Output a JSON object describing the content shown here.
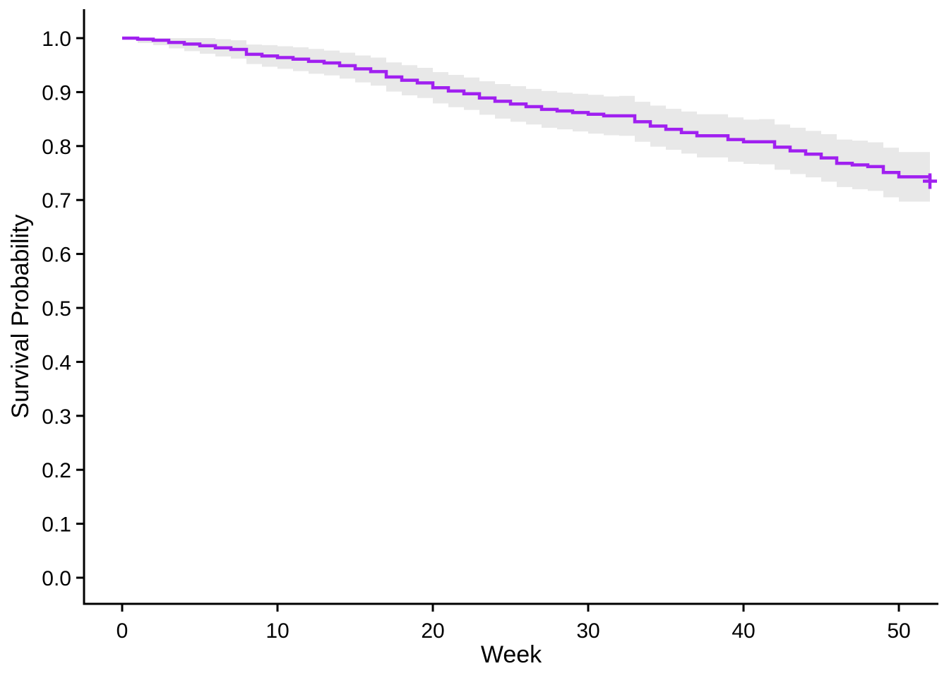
{
  "figure": {
    "background_color": "#FFFFFF",
    "plot_type_hint": "kaplan-meier-survival-curve"
  },
  "chart_data": {
    "type": "line",
    "subtype": "kaplan-meier-step",
    "title": "",
    "xlabel": "Week",
    "ylabel": "Survival Probability",
    "xlim": [
      0,
      52
    ],
    "ylim": [
      0.0,
      1.0
    ],
    "x_ticks": [
      0,
      10,
      20,
      30,
      40,
      50
    ],
    "y_ticks": [
      0.0,
      0.1,
      0.2,
      0.3,
      0.4,
      0.5,
      0.6,
      0.7,
      0.8,
      0.9,
      1.0
    ],
    "grid": false,
    "legend_position": "none",
    "colors": {
      "line": "#A020F0",
      "confidence_band": "#E8E8E8",
      "axis": "#000000",
      "text": "#000000"
    },
    "series": [
      {
        "name": "survival",
        "weeks": [
          0,
          1,
          2,
          3,
          4,
          5,
          6,
          7,
          8,
          9,
          10,
          11,
          12,
          13,
          14,
          15,
          16,
          17,
          18,
          19,
          20,
          21,
          22,
          23,
          24,
          25,
          26,
          27,
          28,
          29,
          30,
          31,
          32,
          33,
          34,
          35,
          36,
          37,
          38,
          39,
          40,
          41,
          42,
          43,
          44,
          45,
          46,
          47,
          48,
          49,
          50,
          51,
          52
        ],
        "survival": [
          1.0,
          0.998,
          0.996,
          0.992,
          0.989,
          0.986,
          0.982,
          0.979,
          0.97,
          0.967,
          0.964,
          0.961,
          0.957,
          0.954,
          0.949,
          0.943,
          0.938,
          0.928,
          0.922,
          0.917,
          0.908,
          0.902,
          0.897,
          0.889,
          0.883,
          0.878,
          0.873,
          0.868,
          0.865,
          0.862,
          0.859,
          0.856,
          0.856,
          0.845,
          0.837,
          0.831,
          0.825,
          0.819,
          0.819,
          0.812,
          0.808,
          0.808,
          0.798,
          0.791,
          0.785,
          0.778,
          0.768,
          0.765,
          0.762,
          0.751,
          0.743,
          0.743,
          0.735
        ],
        "ci_lower": [
          1.0,
          0.991,
          0.987,
          0.981,
          0.976,
          0.971,
          0.966,
          0.962,
          0.952,
          0.947,
          0.943,
          0.939,
          0.934,
          0.931,
          0.925,
          0.918,
          0.912,
          0.901,
          0.894,
          0.889,
          0.879,
          0.872,
          0.867,
          0.858,
          0.851,
          0.845,
          0.84,
          0.834,
          0.831,
          0.827,
          0.823,
          0.82,
          0.819,
          0.808,
          0.799,
          0.793,
          0.786,
          0.779,
          0.779,
          0.771,
          0.767,
          0.766,
          0.756,
          0.748,
          0.742,
          0.734,
          0.724,
          0.72,
          0.717,
          0.705,
          0.697,
          0.697,
          0.688
        ],
        "ci_upper": [
          1.0,
          1.0,
          1.0,
          1.0,
          1.0,
          1.0,
          0.998,
          0.996,
          0.988,
          0.987,
          0.985,
          0.983,
          0.98,
          0.977,
          0.973,
          0.968,
          0.964,
          0.955,
          0.95,
          0.945,
          0.937,
          0.932,
          0.927,
          0.92,
          0.915,
          0.911,
          0.906,
          0.902,
          0.899,
          0.897,
          0.895,
          0.892,
          0.893,
          0.882,
          0.875,
          0.869,
          0.864,
          0.859,
          0.859,
          0.853,
          0.849,
          0.85,
          0.84,
          0.834,
          0.828,
          0.822,
          0.812,
          0.81,
          0.807,
          0.797,
          0.789,
          0.789,
          0.782
        ]
      }
    ],
    "censored_points": [
      {
        "week": 52,
        "survival": 0.735
      }
    ]
  }
}
